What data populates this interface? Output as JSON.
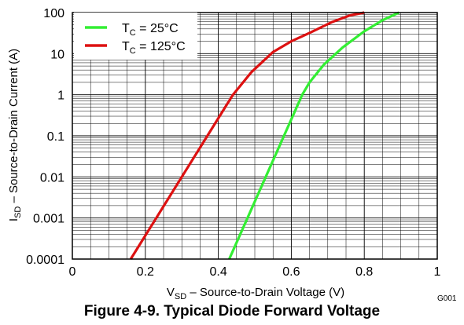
{
  "figure_caption": "Figure 4-9. Typical Diode Forward Voltage",
  "figure_code": "G001",
  "chart_data": {
    "type": "line",
    "title": "",
    "xlabel": {
      "main": "V",
      "sub": "SD",
      "rest": " – Source-to-Drain Voltage (V)"
    },
    "ylabel": {
      "main": "I",
      "sub": "SD",
      "rest": " – Source-to-Drain Current (A)"
    },
    "xlim": [
      0,
      1
    ],
    "ylim": [
      0.0001,
      100
    ],
    "y_scale": "log",
    "x_ticks": [
      0,
      0.2,
      0.4,
      0.6,
      0.8,
      1
    ],
    "x_tick_labels": [
      "0",
      "0.2",
      "0.4",
      "0.6",
      "0.8",
      "1"
    ],
    "y_ticks": [
      0.0001,
      0.001,
      0.01,
      0.1,
      1,
      10,
      100
    ],
    "y_tick_labels": [
      "0.0001",
      "0.001",
      "0.01",
      "0.1",
      "1",
      "10",
      "100"
    ],
    "grid": true,
    "legend_position": "top-left",
    "series": [
      {
        "name": {
          "main": "T",
          "sub": "C",
          "rest": " = 25°C"
        },
        "color": "#33ee33",
        "points": [
          [
            0.43,
            0.0001
          ],
          [
            0.48,
            0.001
          ],
          [
            0.53,
            0.01
          ],
          [
            0.58,
            0.1
          ],
          [
            0.63,
            1
          ],
          [
            0.65,
            2
          ],
          [
            0.69,
            5.5
          ],
          [
            0.74,
            14
          ],
          [
            0.8,
            35
          ],
          [
            0.85,
            65
          ],
          [
            0.895,
            100
          ]
        ]
      },
      {
        "name": {
          "main": "T",
          "sub": "C",
          "rest": " = 125°C"
        },
        "color": "#dd1111",
        "points": [
          [
            0.16,
            0.0001
          ],
          [
            0.23,
            0.001
          ],
          [
            0.3,
            0.01
          ],
          [
            0.37,
            0.1
          ],
          [
            0.44,
            1
          ],
          [
            0.49,
            3.5
          ],
          [
            0.55,
            11
          ],
          [
            0.6,
            20
          ],
          [
            0.65,
            32
          ],
          [
            0.71,
            58
          ],
          [
            0.76,
            85
          ],
          [
            0.8,
            100
          ]
        ]
      }
    ]
  }
}
